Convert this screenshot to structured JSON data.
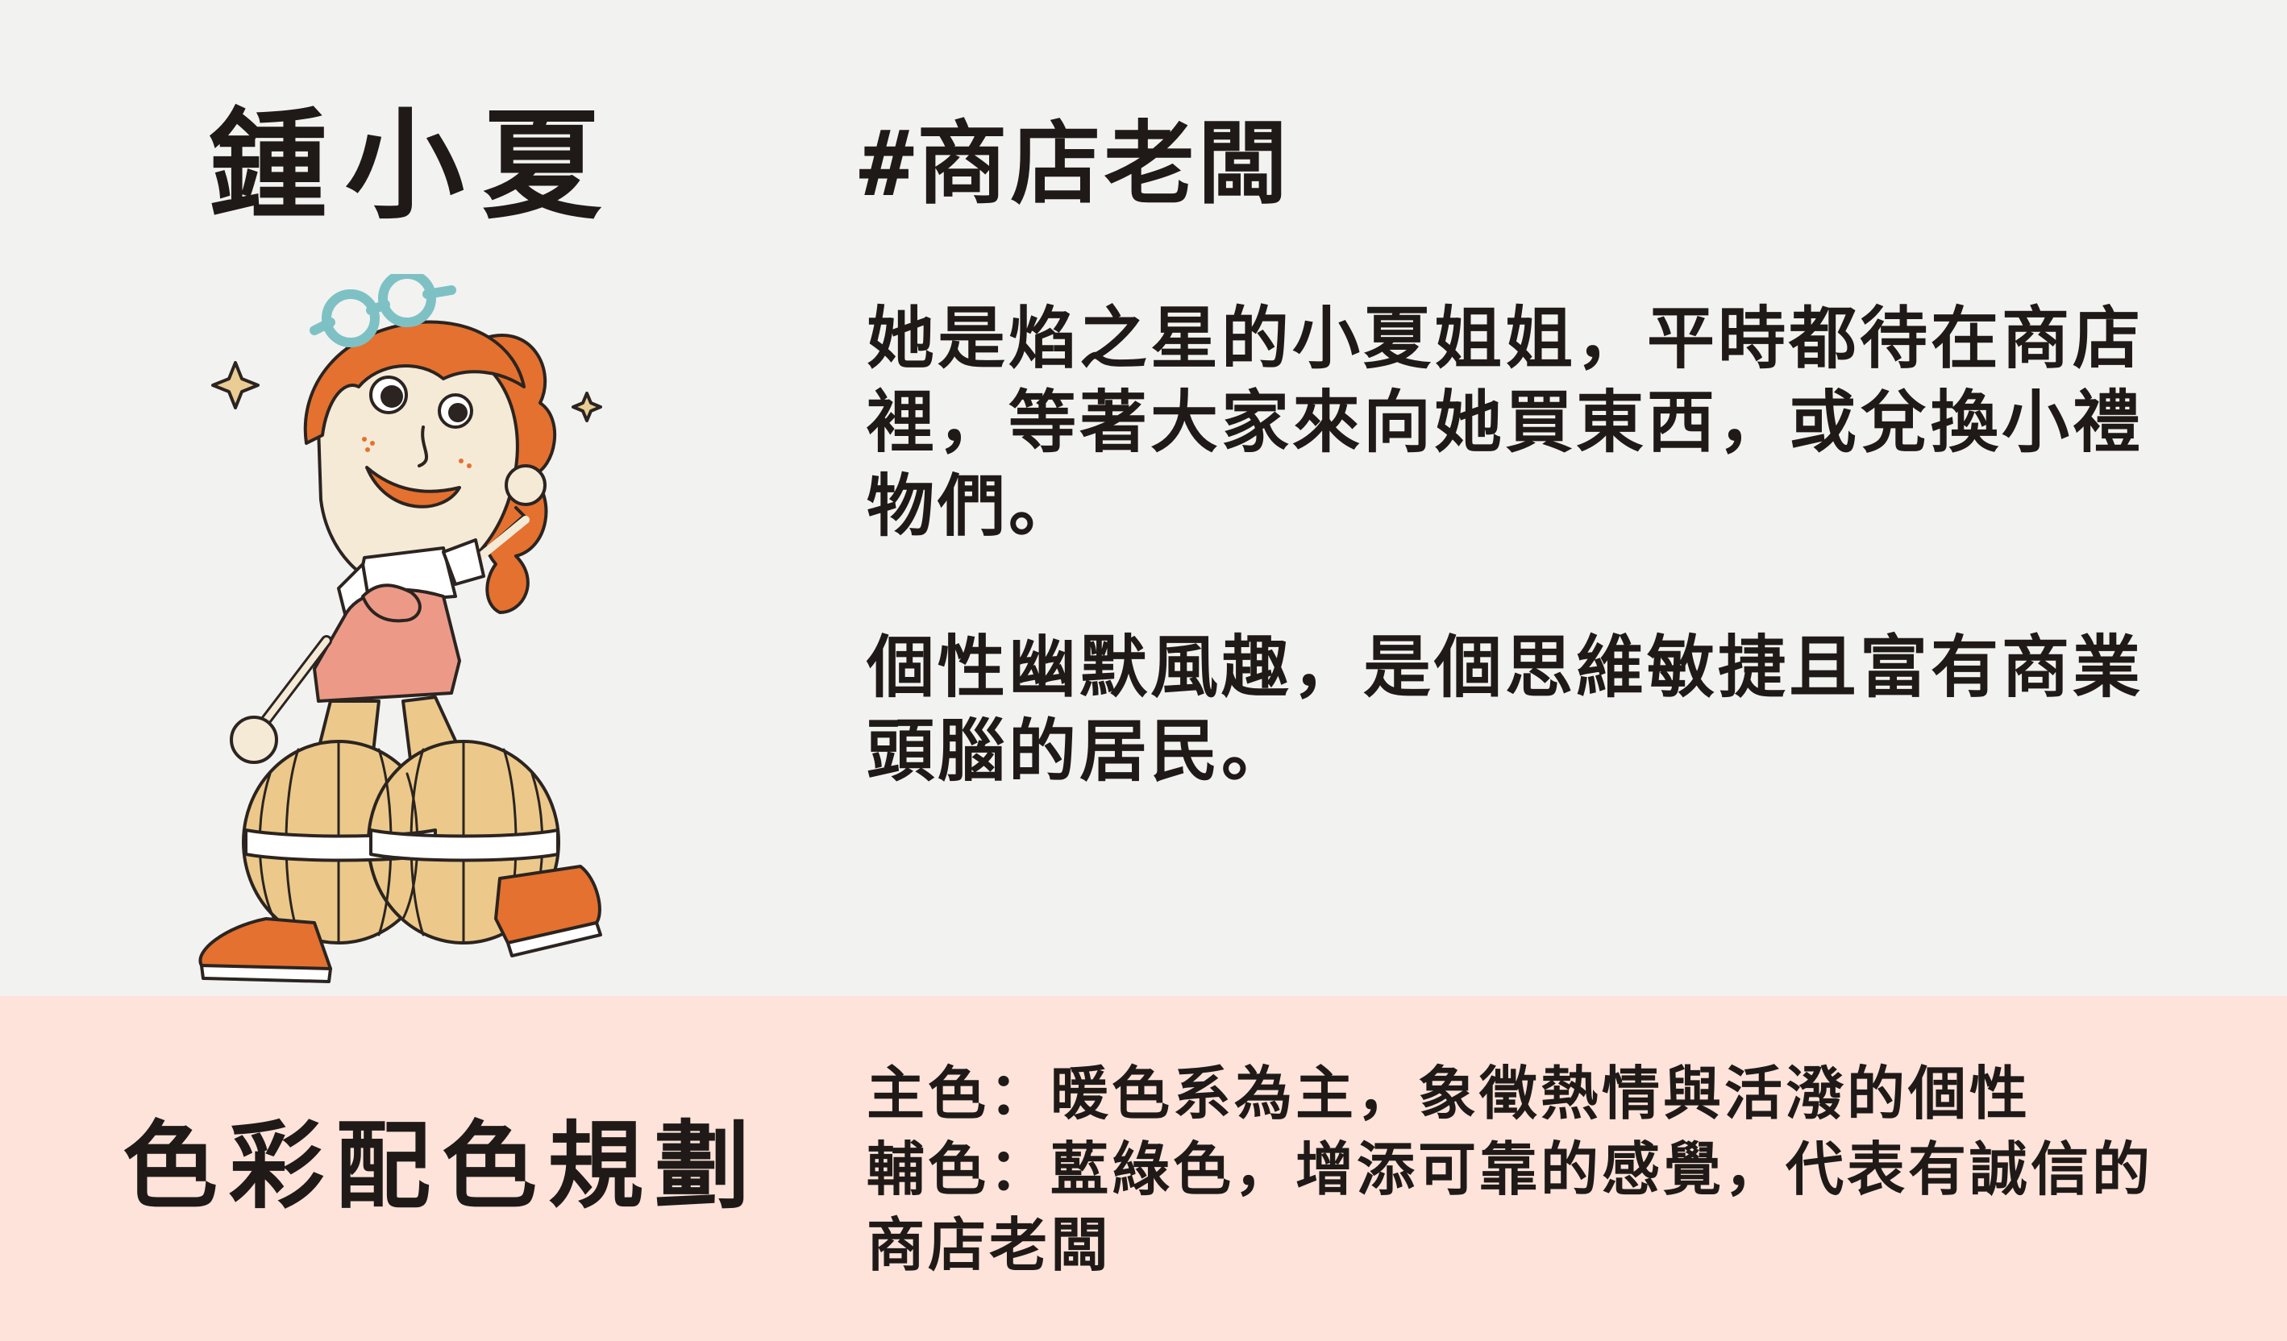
{
  "character": {
    "name": "鍾小夏",
    "tag": "#商店老闆",
    "description": [
      "她是焰之星的小夏姐姐，平時都待在商店裡，等著大家來向她買東西，或兌換小禮物們。",
      "個性幽默風趣，是個思維敏捷且富有商業頭腦的居民。"
    ]
  },
  "palette": {
    "title": "色彩配色規劃",
    "primary": "主色：暖色系為主，象徵熱情與活潑的個性",
    "secondary": "輔色：藍綠色，增添可靠的感覺，代表有誠信的商店老闆"
  },
  "colors": {
    "top_background": "#f2f2f1",
    "bottom_background": "#fde3da",
    "hair": "#e4712f",
    "goggles": "#7ec1c4",
    "skin": "#f5ead6",
    "dress": "#ec9a87",
    "pants": "#ecc98a",
    "shoes": "#e4712f",
    "outline": "#2b2420"
  },
  "icons": [
    "character-illustration",
    "sparkle-icon"
  ]
}
